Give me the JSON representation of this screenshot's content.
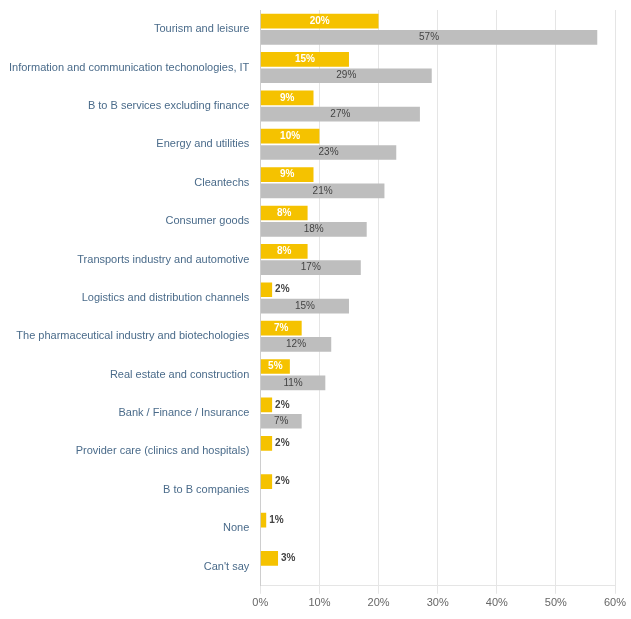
{
  "chart_data": {
    "type": "bar",
    "orientation": "horizontal",
    "categories": [
      "Tourism and leisure",
      "Information and communication techonologies, IT",
      "B to B services excluding finance",
      "Energy and utilities",
      "Cleantechs",
      "Consumer goods",
      "Transports industry and automotive",
      "Logistics and distribution channels",
      "The pharmaceutical industry and biotechologies",
      "Real estate and construction",
      "Bank / Finance / Insurance",
      "Provider care (clinics and hospitals)",
      "B to B companies",
      "None",
      "Can't say"
    ],
    "series": [
      {
        "color": "#F5C200",
        "values": [
          20,
          15,
          9,
          10,
          9,
          8,
          8,
          2,
          7,
          5,
          2,
          2,
          2,
          1,
          3
        ],
        "value_labels": [
          "20%",
          "15%",
          "9%",
          "10%",
          "9%",
          "8%",
          "8%",
          "2%",
          "7%",
          "5%",
          "2%",
          "2%",
          "2%",
          "1%",
          "3%"
        ]
      },
      {
        "color": "#BEBEBE",
        "values": [
          57,
          29,
          27,
          23,
          21,
          18,
          17,
          15,
          12,
          11,
          7,
          0,
          0,
          0,
          0
        ],
        "value_labels": [
          "57%",
          "29%",
          "27%",
          "23%",
          "21%",
          "18%",
          "17%",
          "15%",
          "12%",
          "11%",
          "7%",
          null,
          null,
          null,
          null
        ]
      }
    ],
    "xlim": [
      0,
      60
    ],
    "xticks": [
      {
        "value": 0,
        "label": "0%"
      },
      {
        "value": 10,
        "label": "10%"
      },
      {
        "value": 20,
        "label": "20%"
      },
      {
        "value": 30,
        "label": "30%"
      },
      {
        "value": 40,
        "label": "40%"
      },
      {
        "value": 50,
        "label": "50%"
      },
      {
        "value": 60,
        "label": "60%"
      }
    ],
    "grid": true,
    "data_labels": true
  }
}
